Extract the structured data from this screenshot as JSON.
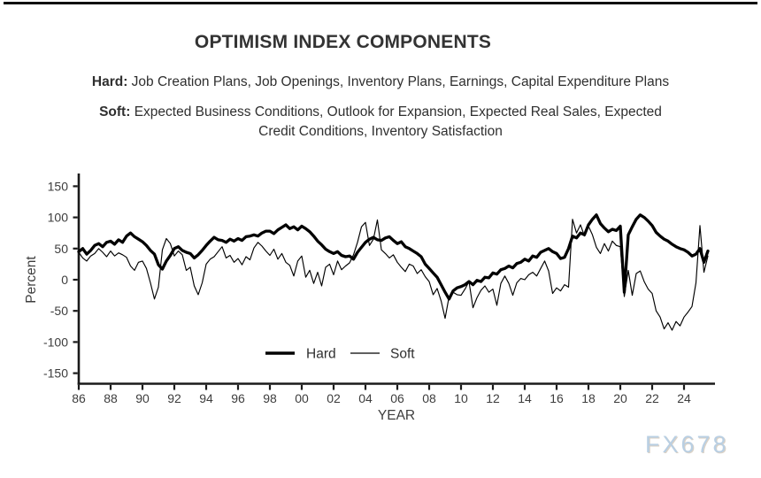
{
  "header": {
    "title": "OPTIMISM INDEX COMPONENTS",
    "hard": {
      "label": "Hard:",
      "text": "Job Creation Plans, Job Openings, Inventory Plans, Earnings, Capital Expenditure Plans"
    },
    "soft": {
      "label": "Soft:",
      "line1": "Expected Business Conditions, Outlook for Expansion, Expected Real Sales, Expected",
      "line2": "Credit Conditions, Inventory Satisfaction"
    }
  },
  "watermark": "FX678",
  "chart_data": {
    "type": "line",
    "title": "OPTIMISM INDEX COMPONENTS",
    "xlabel": "YEAR",
    "ylabel": "Percent",
    "grid": false,
    "legend_position": "inside-bottom-center",
    "line_color": "#000000",
    "axis_color": "#1a1a1a",
    "tick_label_color": "#3d3d3d",
    "xlim": [
      1986,
      2026
    ],
    "ylim": [
      -165,
      168
    ],
    "y_ticks": [
      150,
      100,
      50,
      0,
      -50,
      -100,
      -150
    ],
    "x_ticks": [
      1986,
      1988,
      1990,
      1992,
      1994,
      1996,
      1998,
      2000,
      2002,
      2004,
      2006,
      2008,
      2010,
      2012,
      2014,
      2016,
      2018,
      2020,
      2022,
      2024
    ],
    "x_tick_labels": [
      "86",
      "88",
      "90",
      "92",
      "94",
      "96",
      "98",
      "00",
      "02",
      "04",
      "06",
      "08",
      "10",
      "12",
      "14",
      "16",
      "18",
      "20",
      "22",
      "24"
    ],
    "x_start": 1986.0,
    "x_step": 0.25,
    "series": [
      {
        "name": "Hard",
        "stroke_width": 3.3,
        "values": [
          45,
          50,
          41,
          47,
          55,
          58,
          53,
          60,
          62,
          57,
          64,
          60,
          70,
          75,
          69,
          65,
          61,
          55,
          47,
          41,
          24,
          17,
          30,
          39,
          50,
          53,
          47,
          44,
          42,
          35,
          40,
          47,
          55,
          62,
          68,
          64,
          63,
          60,
          65,
          62,
          66,
          63,
          69,
          70,
          72,
          70,
          75,
          78,
          78,
          74,
          80,
          84,
          88,
          82,
          85,
          80,
          86,
          82,
          77,
          70,
          62,
          56,
          49,
          45,
          42,
          45,
          39,
          37,
          38,
          33,
          44,
          52,
          60,
          65,
          68,
          64,
          63,
          67,
          69,
          63,
          58,
          61,
          53,
          50,
          46,
          42,
          37,
          25,
          18,
          11,
          4,
          -8,
          -20,
          -31,
          -18,
          -13,
          -11,
          -8,
          -3,
          -8,
          -1,
          -3,
          4,
          3,
          11,
          9,
          16,
          18,
          22,
          19,
          26,
          28,
          33,
          30,
          38,
          36,
          44,
          47,
          50,
          45,
          42,
          34,
          36,
          50,
          70,
          67,
          75,
          72,
          88,
          97,
          104,
          90,
          83,
          77,
          81,
          79,
          86,
          -20,
          72,
          85,
          97,
          104,
          100,
          94,
          87,
          76,
          70,
          65,
          62,
          57,
          53,
          50,
          48,
          44,
          38,
          41,
          50,
          28,
          46
        ]
      },
      {
        "name": "Soft",
        "stroke_width": 1.15,
        "values": [
          44,
          35,
          30,
          38,
          42,
          50,
          44,
          37,
          46,
          38,
          43,
          40,
          36,
          22,
          15,
          28,
          30,
          18,
          -5,
          -31,
          -12,
          48,
          66,
          58,
          38,
          46,
          40,
          15,
          20,
          -10,
          -24,
          -5,
          25,
          33,
          37,
          45,
          53,
          35,
          39,
          28,
          34,
          24,
          37,
          32,
          51,
          60,
          54,
          46,
          39,
          49,
          33,
          42,
          28,
          23,
          6,
          30,
          38,
          4,
          15,
          -6,
          12,
          -10,
          20,
          25,
          8,
          30,
          16,
          22,
          27,
          40,
          60,
          85,
          92,
          55,
          65,
          96,
          48,
          42,
          35,
          40,
          28,
          20,
          13,
          25,
          22,
          10,
          16,
          5,
          -3,
          -24,
          -14,
          -34,
          -62,
          -27,
          -20,
          -24,
          -25,
          -15,
          -3,
          -45,
          -29,
          -17,
          -10,
          -20,
          -15,
          -41,
          -6,
          6,
          -6,
          -25,
          -5,
          2,
          0,
          8,
          12,
          6,
          18,
          30,
          14,
          -22,
          -13,
          -18,
          -8,
          -12,
          97,
          75,
          88,
          70,
          86,
          72,
          52,
          42,
          58,
          46,
          62,
          55,
          53,
          -27,
          15,
          -25,
          10,
          14,
          -3,
          -15,
          -22,
          -50,
          -60,
          -79,
          -69,
          -81,
          -67,
          -74,
          -60,
          -52,
          -43,
          -5,
          87,
          12,
          38
        ]
      }
    ]
  }
}
